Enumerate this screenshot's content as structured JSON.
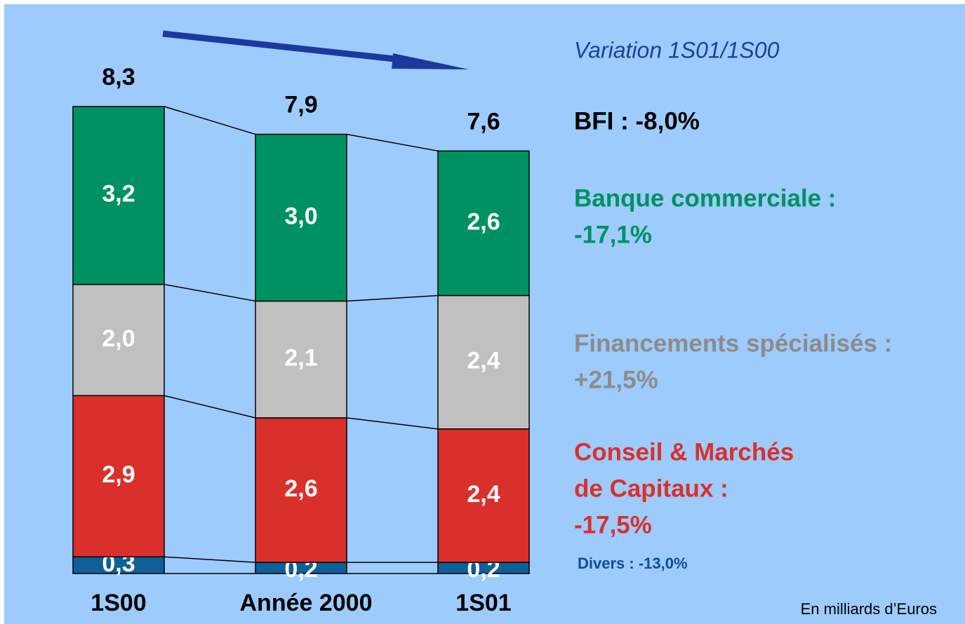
{
  "chart_data": {
    "type": "stacked-bar",
    "categories": [
      "1S00",
      "Année 2000",
      "1S01"
    ],
    "series": [
      {
        "color": "#0f5f98",
        "values": [
          0.3,
          0.2,
          0.2
        ],
        "value_labels": [
          "0,3",
          "0,2",
          "0,2"
        ]
      },
      {
        "color": "#da302c",
        "values": [
          2.9,
          2.6,
          2.4
        ],
        "value_labels": [
          "2,9",
          "2,6",
          "2,4"
        ]
      },
      {
        "color": "#c0c0c0",
        "values": [
          2.0,
          2.1,
          2.4
        ],
        "value_labels": [
          "2,0",
          "2,1",
          "2,4"
        ]
      },
      {
        "color": "#009162",
        "values": [
          3.2,
          3.0,
          2.6
        ],
        "value_labels": [
          "3,2",
          "3,0",
          "2,6"
        ]
      }
    ],
    "totals": [
      8.3,
      7.9,
      7.6
    ],
    "total_labels": [
      "8,3",
      "7,9",
      "7,6"
    ],
    "variation_title": "Variation 1S01/1S00",
    "annotations": [
      {
        "color": "#000000",
        "lines": [
          "BFI : -8,0%"
        ]
      },
      {
        "color": "#009162",
        "lines": [
          "Banque commerciale :",
          "-17,1%"
        ]
      },
      {
        "color": "#8c8c8c",
        "lines": [
          "Financements spécialisés :",
          "+21,5%"
        ]
      },
      {
        "color": "#da302c",
        "lines": [
          "Conseil & Marchés",
          "de Capitaux :",
          "-17,5%"
        ]
      },
      {
        "color": "#0f4f98",
        "lines": [
          "Divers : -13,0%"
        ]
      }
    ],
    "footnote": "En milliards d’Euros"
  }
}
